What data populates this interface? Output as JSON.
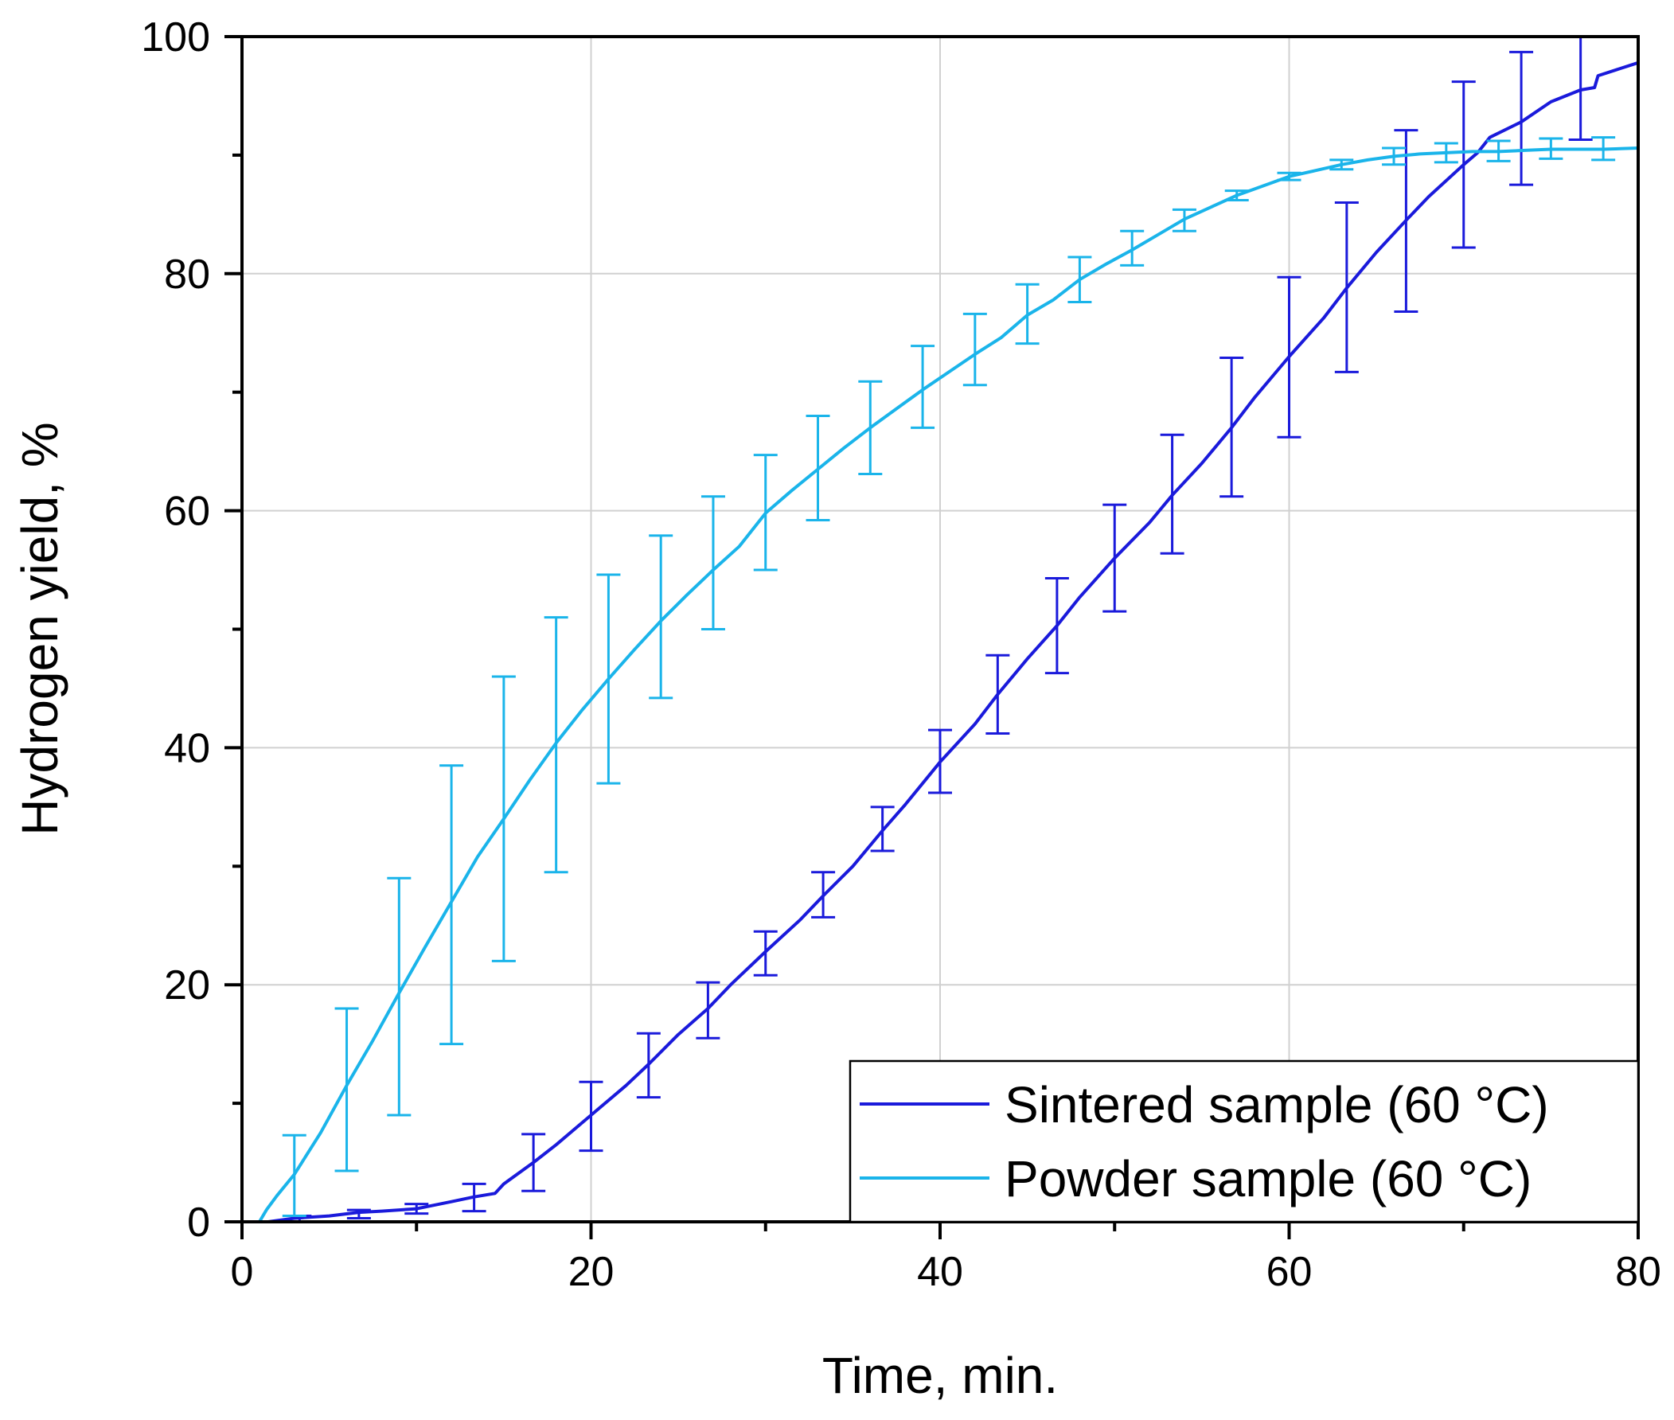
{
  "chart_data": {
    "type": "line",
    "title": "",
    "xlabel": "Time, min.",
    "ylabel": "Hydrogen yield, %",
    "xlim": [
      0,
      80
    ],
    "ylim": [
      0,
      100
    ],
    "xticks": [
      "0",
      "20",
      "40",
      "60",
      "80"
    ],
    "yticks": [
      "0",
      "20",
      "40",
      "60",
      "80",
      "100"
    ],
    "grid": true,
    "legend_position": "bottom-right",
    "series": [
      {
        "name": "Sintered sample (60 °C)",
        "color": "#1a1adb",
        "x": [
          0,
          1.5,
          3,
          5,
          6.7,
          8,
          10,
          12,
          13.3,
          14.5,
          15,
          16.7,
          18,
          20,
          22,
          23.3,
          25,
          26.7,
          28,
          30,
          32,
          33.3,
          35,
          36.7,
          38,
          40,
          42,
          43.3,
          45,
          46.7,
          48,
          50,
          52,
          53.3,
          55,
          56.7,
          58,
          60,
          62,
          63.3,
          65,
          66.7,
          68,
          70,
          70.8,
          71.5,
          73.3,
          75,
          76.7,
          77.5,
          77.7,
          80
        ],
        "y": [
          0,
          0,
          0.3,
          0.5,
          0.8,
          0.9,
          1.1,
          1.7,
          2.1,
          2.4,
          3.2,
          5.0,
          6.5,
          9.0,
          11.5,
          13.3,
          15.8,
          18.0,
          20.0,
          22.8,
          25.5,
          27.5,
          30.0,
          33.0,
          35.2,
          38.8,
          42.0,
          44.5,
          47.5,
          50.3,
          52.7,
          56.0,
          59.0,
          61.3,
          64.0,
          67.0,
          69.5,
          73.0,
          76.3,
          78.8,
          81.8,
          84.5,
          86.5,
          89.2,
          90.2,
          91.5,
          92.8,
          94.5,
          95.5,
          95.7,
          96.7,
          97.8
        ],
        "error_bars": {
          "x": [
            3.3,
            6.7,
            10,
            13.3,
            16.7,
            20,
            23.3,
            26.7,
            30,
            33.3,
            36.7,
            40,
            43.3,
            46.7,
            50,
            53.3,
            56.7,
            60,
            63.3,
            66.7,
            70,
            73.3,
            76.7
          ],
          "low": [
            0,
            0.3,
            0.7,
            0.9,
            2.6,
            6.0,
            10.5,
            15.5,
            20.8,
            25.7,
            31.3,
            36.2,
            41.2,
            46.3,
            51.5,
            56.4,
            61.2,
            66.2,
            71.7,
            76.8,
            82.2,
            87.5,
            91.3
          ],
          "high": [
            0.5,
            1.0,
            1.5,
            3.2,
            7.4,
            11.8,
            15.9,
            20.2,
            24.5,
            29.5,
            35.0,
            41.5,
            47.8,
            54.3,
            60.5,
            66.4,
            72.9,
            79.7,
            86.0,
            92.1,
            96.2,
            98.7,
            100.5
          ]
        }
      },
      {
        "name": "Powder sample (60 °C)",
        "color": "#1ab4ea",
        "x": [
          0,
          1.0,
          1.4,
          2,
          3,
          4.5,
          6,
          7.5,
          9,
          10.5,
          12,
          13.5,
          15,
          16.5,
          18,
          19.5,
          21,
          22.5,
          24,
          25.5,
          27,
          28.5,
          30,
          31.5,
          33,
          34.5,
          36,
          37.5,
          39,
          40.5,
          42,
          43.5,
          45,
          46.5,
          48,
          49.5,
          51,
          52.5,
          54,
          55.5,
          57,
          58.5,
          60,
          61.5,
          63,
          64.5,
          66,
          67.5,
          69,
          70.5,
          72,
          73.5,
          75,
          76.5,
          78,
          80
        ],
        "y": [
          0,
          0,
          1.0,
          2.2,
          4.0,
          7.5,
          11.5,
          15.3,
          19.3,
          23.2,
          27.0,
          30.8,
          34.0,
          37.3,
          40.4,
          43.2,
          45.8,
          48.3,
          50.7,
          52.9,
          55.0,
          57.0,
          59.8,
          61.7,
          63.5,
          65.3,
          67.0,
          68.6,
          70.2,
          71.7,
          73.2,
          74.6,
          76.5,
          77.8,
          79.5,
          80.8,
          82.0,
          83.3,
          84.6,
          85.6,
          86.6,
          87.4,
          88.2,
          88.7,
          89.2,
          89.6,
          89.9,
          90.1,
          90.2,
          90.3,
          90.3,
          90.4,
          90.5,
          90.5,
          90.5,
          90.6
        ],
        "error_bars": {
          "x": [
            3,
            6,
            9,
            12,
            15,
            18,
            21,
            24,
            27,
            30,
            33,
            36,
            39,
            42,
            45,
            48,
            51,
            54,
            57,
            60,
            63,
            66,
            69,
            72,
            75,
            78
          ],
          "low": [
            0.5,
            4.3,
            9.0,
            15.0,
            22.0,
            29.5,
            37.0,
            44.2,
            50.0,
            55.0,
            59.2,
            63.1,
            67.0,
            70.6,
            74.1,
            77.6,
            80.7,
            83.6,
            86.2,
            87.9,
            88.8,
            89.2,
            89.4,
            89.5,
            89.7,
            89.6
          ],
          "high": [
            7.3,
            18.0,
            29.0,
            38.5,
            46.0,
            51.0,
            54.6,
            57.9,
            61.2,
            64.7,
            68.0,
            70.9,
            73.9,
            76.6,
            79.1,
            81.4,
            83.6,
            85.4,
            87.0,
            88.5,
            89.6,
            90.6,
            91.0,
            91.2,
            91.4,
            91.5
          ]
        }
      }
    ]
  }
}
